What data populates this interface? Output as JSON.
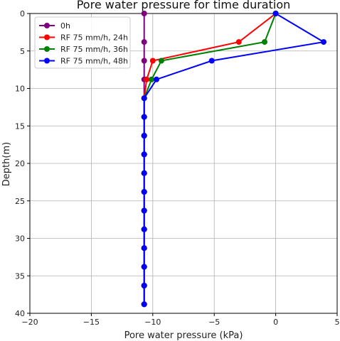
{
  "chart_data": {
    "type": "line",
    "title": "Pore water pressure for time duration",
    "xlabel": "Pore water pressure (kPa)",
    "ylabel": "Depth(m)",
    "xlim": [
      -20,
      5
    ],
    "ylim": [
      40,
      0
    ],
    "y_inverted": true,
    "grid": true,
    "legend_position": "top-left",
    "xticks": [
      -20,
      -15,
      -10,
      -5,
      0,
      5
    ],
    "yticks": [
      0,
      5,
      10,
      15,
      20,
      25,
      30,
      35,
      40
    ],
    "series": [
      {
        "name": "0h",
        "color": "#800080",
        "points": [
          [
            -10.7,
            0
          ],
          [
            -10.7,
            3.8
          ],
          [
            -10.7,
            6.3
          ],
          [
            -10.7,
            8.8
          ],
          [
            -10.7,
            11.3
          ],
          [
            -10.7,
            13.8
          ],
          [
            -10.7,
            16.3
          ],
          [
            -10.7,
            18.8
          ],
          [
            -10.7,
            21.3
          ],
          [
            -10.7,
            23.8
          ],
          [
            -10.7,
            26.3
          ],
          [
            -10.7,
            28.8
          ],
          [
            -10.7,
            31.3
          ],
          [
            -10.7,
            33.8
          ],
          [
            -10.7,
            36.3
          ],
          [
            -10.7,
            38.8
          ]
        ]
      },
      {
        "name": "RF 75 mm/h, 24h",
        "color": "#ff0000",
        "points": [
          [
            0.0,
            0
          ],
          [
            -3.0,
            3.8
          ],
          [
            -10.0,
            6.3
          ],
          [
            -10.5,
            8.8
          ],
          [
            -10.7,
            11.3
          ],
          [
            -10.7,
            13.8
          ],
          [
            -10.7,
            16.3
          ],
          [
            -10.7,
            18.8
          ],
          [
            -10.7,
            21.3
          ],
          [
            -10.7,
            23.8
          ],
          [
            -10.7,
            26.3
          ],
          [
            -10.7,
            28.8
          ],
          [
            -10.7,
            31.3
          ],
          [
            -10.7,
            33.8
          ],
          [
            -10.7,
            36.3
          ],
          [
            -10.7,
            38.8
          ]
        ]
      },
      {
        "name": "RF 75 mm/h, 36h",
        "color": "#008000",
        "points": [
          [
            0.0,
            0
          ],
          [
            -0.9,
            3.8
          ],
          [
            -9.3,
            6.3
          ],
          [
            -10.1,
            8.8
          ],
          [
            -10.7,
            11.3
          ],
          [
            -10.7,
            13.8
          ],
          [
            -10.7,
            16.3
          ],
          [
            -10.7,
            18.8
          ],
          [
            -10.7,
            21.3
          ],
          [
            -10.7,
            23.8
          ],
          [
            -10.7,
            26.3
          ],
          [
            -10.7,
            28.8
          ],
          [
            -10.7,
            31.3
          ],
          [
            -10.7,
            33.8
          ],
          [
            -10.7,
            36.3
          ],
          [
            -10.7,
            38.8
          ]
        ]
      },
      {
        "name": "RF 75 mm/h, 48h",
        "color": "#0000ff",
        "points": [
          [
            0.0,
            0
          ],
          [
            3.9,
            3.8
          ],
          [
            -5.2,
            6.3
          ],
          [
            -9.7,
            8.8
          ],
          [
            -10.7,
            11.3
          ],
          [
            -10.7,
            13.8
          ],
          [
            -10.7,
            16.3
          ],
          [
            -10.7,
            18.8
          ],
          [
            -10.7,
            21.3
          ],
          [
            -10.7,
            23.8
          ],
          [
            -10.7,
            26.3
          ],
          [
            -10.7,
            28.8
          ],
          [
            -10.7,
            31.3
          ],
          [
            -10.7,
            33.8
          ],
          [
            -10.7,
            36.3
          ],
          [
            -10.7,
            38.8
          ]
        ]
      }
    ]
  }
}
